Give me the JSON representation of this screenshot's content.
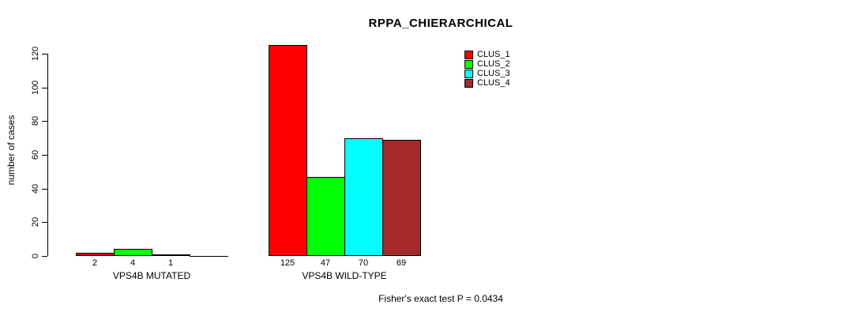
{
  "title": "RPPA_CHIERARCHICAL",
  "footer": "Fisher's exact test P = 0.0434",
  "chart_data": {
    "type": "bar",
    "title": "RPPA_CHIERARCHICAL",
    "xlabel": "",
    "ylabel": "number of cases",
    "ylim": [
      0,
      120
    ],
    "yticks": [
      0,
      20,
      40,
      60,
      80,
      100,
      120
    ],
    "grid": false,
    "categories": [
      "VPS4B MUTATED",
      "VPS4B WILD-TYPE"
    ],
    "series": [
      {
        "name": "CLUS_1",
        "color": "#FF0000",
        "values": [
          2,
          125
        ]
      },
      {
        "name": "CLUS_2",
        "color": "#00FF00",
        "values": [
          4,
          47
        ]
      },
      {
        "name": "CLUS_3",
        "color": "#00FFFF",
        "values": [
          1,
          70
        ]
      },
      {
        "name": "CLUS_4",
        "color": "#A52A2A",
        "values": [
          0,
          69
        ]
      }
    ],
    "bar_value_labels": [
      [
        "2",
        "4",
        "1",
        ""
      ],
      [
        "125",
        "47",
        "70",
        "69"
      ]
    ],
    "legend": {
      "position": "top-right",
      "entries": [
        "CLUS_1",
        "CLUS_2",
        "CLUS_3",
        "CLUS_4"
      ]
    },
    "annotation": "Fisher's exact test P = 0.0434"
  }
}
